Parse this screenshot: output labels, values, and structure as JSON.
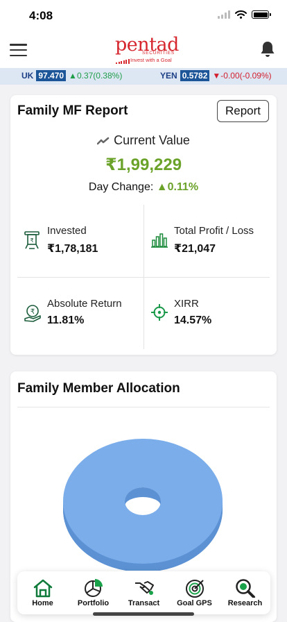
{
  "status_bar": {
    "time": "4:08"
  },
  "header": {
    "logo_word": "pentad",
    "logo_sub": "SECURITIES",
    "logo_tagline": "Invest with a Goal"
  },
  "ticker": [
    {
      "name": "UK",
      "value": "97.470",
      "change": "0.37(0.38%)",
      "direction": "up"
    },
    {
      "name": "YEN",
      "value": "0.5782",
      "change": "-0.00(-0.09%)",
      "direction": "down"
    }
  ],
  "report_card": {
    "title": "Family MF Report",
    "button_label": "Report",
    "current_value_label": "Current Value",
    "current_value": "₹1,99,229",
    "day_change_label": "Day Change:",
    "day_change_value": "0.11%",
    "stats": [
      {
        "label": "Invested",
        "value": "₹1,78,181",
        "icon": "invested-icon"
      },
      {
        "label": "Total Profit / Loss",
        "value": "₹21,047",
        "icon": "bar-chart-icon"
      },
      {
        "label": "Absolute Return",
        "value": "11.81%",
        "icon": "return-icon"
      },
      {
        "label": "XIRR",
        "value": "14.57%",
        "icon": "target-icon"
      }
    ]
  },
  "allocation_card": {
    "title": "Family Member Allocation",
    "donut_color": "#7aade9"
  },
  "bottom_nav": [
    {
      "label": "Home",
      "icon": "home-icon"
    },
    {
      "label": "Portfolio",
      "icon": "pie-chart-icon"
    },
    {
      "label": "Transact",
      "icon": "handshake-icon"
    },
    {
      "label": "Goal GPS",
      "icon": "goal-gps-icon"
    },
    {
      "label": "Research",
      "icon": "research-icon"
    }
  ],
  "colors": {
    "accent_green": "#6aa22a",
    "brand_red": "#d6262e",
    "up": "#1f9e4a",
    "down": "#d32030",
    "ticker_value_bg": "#1d5599"
  }
}
